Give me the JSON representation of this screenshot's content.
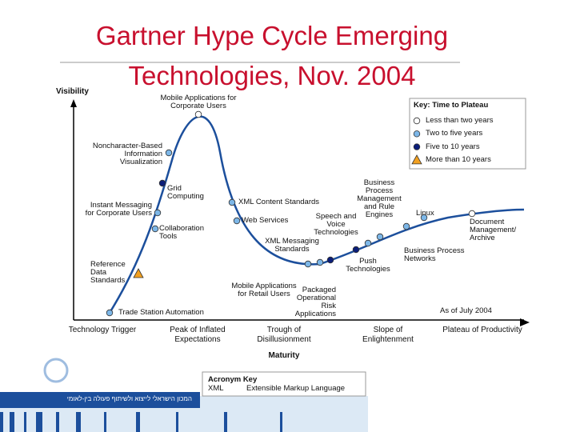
{
  "title": "Gartner Hype Cycle Emerging Technologies, Nov. 2004",
  "axes": {
    "y_label": "Visibility",
    "x_label": "Maturity"
  },
  "phases": [
    "Technology Trigger",
    "Peak of Inflated Expectations",
    "Trough of Disillusionment",
    "Slope of Enlightenment",
    "Plateau of Productivity"
  ],
  "key": {
    "title": "Key: Time to Plateau",
    "items": [
      {
        "label": "Less than two years",
        "technologies": [
          "Mobile Applications for Corporate Users",
          "Document Management/ Archive"
        ]
      },
      {
        "label": "Two to five years",
        "technologies": [
          "Noncharacter-Based Information Visualization",
          "XML Content Standards",
          "Instant Messaging for Corporate Users",
          "Web Services",
          "Collaboration Tools",
          "Trade Station Automation",
          "Mobile Applications for Retail Users",
          "Packaged Operational Risk Applications",
          "Push Technologies",
          "Business Process Management and Rule Engines",
          "Business Process Networks",
          "Linux"
        ]
      },
      {
        "label": "Five to 10 years",
        "technologies": [
          "Grid Computing",
          "XML Messaging Standards",
          "Speech and Voice Technologies"
        ]
      },
      {
        "label": "More than 10 years",
        "technologies": [
          "Reference Data Standards"
        ]
      }
    ]
  },
  "as_of": "As of July 2004",
  "acronym_key": {
    "title": "Acronym Key",
    "acronym": "XML",
    "meaning": "Extensible Markup Language"
  },
  "footer": {
    "organization": "המכון הישראלי לייצוא ולשיתוף פעולה בין-לאומי"
  }
}
